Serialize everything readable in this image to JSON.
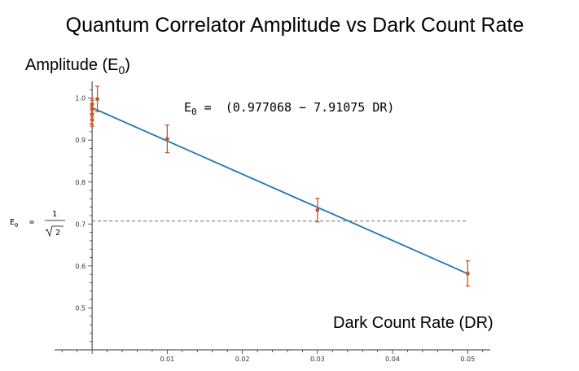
{
  "chart_data": {
    "type": "scatter",
    "title": "Quantum Correlator Amplitude vs Dark Count Rate",
    "ylabel": "Amplitude (E",
    "ylabel_sub": "0",
    "ylabel_close": ")",
    "xlabel": "Dark Count Rate (DR)",
    "xlim": [
      -0.005,
      0.053
    ],
    "ylim": [
      0.4,
      1.04
    ],
    "x_ticks": [
      0.01,
      0.02,
      0.03,
      0.04,
      0.05
    ],
    "y_ticks": [
      0.5,
      0.6,
      0.7,
      0.8,
      0.9,
      1.0
    ],
    "x_tick_labels": [
      "0.01",
      "0.02",
      "0.03",
      "0.04",
      "0.05"
    ],
    "y_tick_labels": [
      "0.5",
      "0.6",
      "0.7",
      "0.8",
      "0.9",
      "1.0"
    ],
    "series": [
      {
        "points": [
          {
            "x": 0.0,
            "y": 0.975,
            "err": 0.02
          },
          {
            "x": 0.0,
            "y": 0.962,
            "err": 0.025
          },
          {
            "x": 0.0,
            "y": 0.948,
            "err": 0.015
          },
          {
            "x": 0.0,
            "y": 0.985,
            "err": 0.015
          },
          {
            "x": 0.0007,
            "y": 0.998,
            "err": 0.03
          },
          {
            "x": 0.01,
            "y": 0.903,
            "err": 0.033
          },
          {
            "x": 0.03,
            "y": 0.733,
            "err": 0.028
          },
          {
            "x": 0.05,
            "y": 0.582,
            "err": 0.03
          }
        ],
        "color": "#c8552b"
      }
    ],
    "fit": {
      "intercept": 0.977068,
      "slope": -7.91075,
      "x_range": [
        0.0,
        0.05
      ],
      "color": "#1f77b4",
      "label_lhs": "E",
      "label_lhs_sub": "0",
      "label_eq": " = ",
      "label_rhs": "(0.977068 − 7.91075 DR)"
    },
    "reference_line": {
      "y": 0.7071,
      "label_lhs": "E",
      "label_lhs_sub": "0",
      "label_eq": "=",
      "label_num": "1",
      "label_den": "2",
      "color": "#888888"
    },
    "grid": false,
    "legend": "none"
  }
}
